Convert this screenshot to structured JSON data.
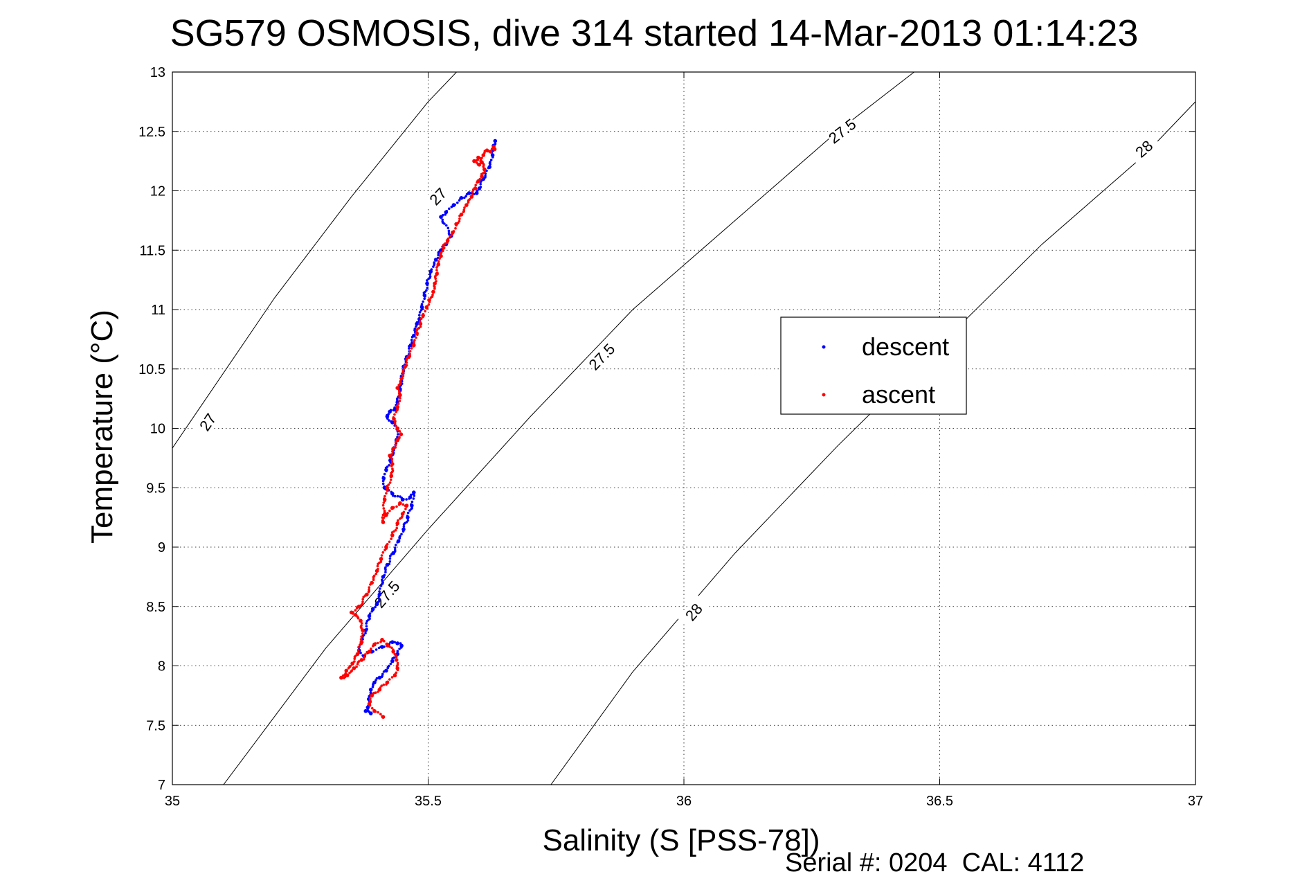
{
  "chart_data": {
    "type": "scatter",
    "title": "SG579 OSMOSIS, dive 314 started 14-Mar-2013 01:14:23",
    "xlabel": "Salinity (S [PSS-78])",
    "ylabel": "Temperature (°C)",
    "xlim": [
      35,
      37
    ],
    "ylim": [
      7,
      13
    ],
    "xticks": [
      "35",
      "35.5",
      "36",
      "36.5",
      "37"
    ],
    "yticks": [
      "7",
      "7.5",
      "8",
      "8.5",
      "9",
      "9.5",
      "10",
      "10.5",
      "11",
      "11.5",
      "12",
      "12.5",
      "13"
    ],
    "grid": true,
    "legend_position": "right-center",
    "footer": "Serial #: 0204  CAL: 4112",
    "contours": [
      {
        "level": "27",
        "points": [
          [
            34.9,
            9.2
          ],
          [
            35.05,
            10.15
          ],
          [
            35.2,
            11.1
          ],
          [
            35.35,
            11.95
          ],
          [
            35.5,
            12.75
          ],
          [
            35.6,
            13.2
          ]
        ],
        "labels": [
          {
            "x": 35.07,
            "y": 10.05
          },
          {
            "x": 35.52,
            "y": 11.95
          }
        ]
      },
      {
        "level": "27.5",
        "points": [
          [
            35.1,
            7.0
          ],
          [
            35.3,
            8.15
          ],
          [
            35.5,
            9.15
          ],
          [
            35.7,
            10.1
          ],
          [
            35.9,
            11.0
          ],
          [
            36.1,
            11.75
          ],
          [
            36.3,
            12.5
          ],
          [
            36.45,
            13.0
          ]
        ],
        "labels": [
          {
            "x": 35.42,
            "y": 8.6
          },
          {
            "x": 35.84,
            "y": 10.6
          },
          {
            "x": 36.31,
            "y": 12.5
          }
        ]
      },
      {
        "level": "28",
        "points": [
          [
            35.74,
            7.0
          ],
          [
            35.9,
            7.95
          ],
          [
            36.1,
            8.95
          ],
          [
            36.3,
            9.85
          ],
          [
            36.5,
            10.7
          ],
          [
            36.7,
            11.55
          ],
          [
            36.9,
            12.3
          ],
          [
            37.0,
            12.75
          ]
        ],
        "labels": [
          {
            "x": 36.02,
            "y": 8.45
          },
          {
            "x": 36.9,
            "y": 12.35
          }
        ]
      }
    ],
    "series": [
      {
        "name": "descent",
        "color": "#0000ff",
        "points": [
          [
            35.631,
            12.42
          ],
          [
            35.628,
            12.38
          ],
          [
            35.626,
            12.3
          ],
          [
            35.62,
            12.2
          ],
          [
            35.608,
            12.1
          ],
          [
            35.6,
            12.02
          ],
          [
            35.595,
            11.98
          ],
          [
            35.58,
            11.98
          ],
          [
            35.565,
            11.94
          ],
          [
            35.55,
            11.88
          ],
          [
            35.535,
            11.82
          ],
          [
            35.525,
            11.78
          ],
          [
            35.545,
            11.62
          ],
          [
            35.535,
            11.55
          ],
          [
            35.525,
            11.5
          ],
          [
            35.515,
            11.42
          ],
          [
            35.505,
            11.32
          ],
          [
            35.498,
            11.22
          ],
          [
            35.493,
            11.12
          ],
          [
            35.488,
            11.02
          ],
          [
            35.483,
            10.92
          ],
          [
            35.478,
            10.88
          ],
          [
            35.472,
            10.78
          ],
          [
            35.466,
            10.7
          ],
          [
            35.458,
            10.6
          ],
          [
            35.452,
            10.52
          ],
          [
            35.448,
            10.42
          ],
          [
            35.445,
            10.33
          ],
          [
            35.44,
            10.22
          ],
          [
            35.435,
            10.16
          ],
          [
            35.425,
            10.14
          ],
          [
            35.42,
            10.1
          ],
          [
            35.43,
            10.05
          ],
          [
            35.44,
            10.0
          ],
          [
            35.438,
            9.9
          ],
          [
            35.432,
            9.82
          ],
          [
            35.426,
            9.73
          ],
          [
            35.418,
            9.65
          ],
          [
            35.413,
            9.58
          ],
          [
            35.415,
            9.5
          ],
          [
            35.43,
            9.45
          ],
          [
            35.45,
            9.4
          ],
          [
            35.465,
            9.42
          ],
          [
            35.472,
            9.46
          ],
          [
            35.468,
            9.35
          ],
          [
            35.46,
            9.25
          ],
          [
            35.452,
            9.15
          ],
          [
            35.442,
            9.05
          ],
          [
            35.432,
            8.95
          ],
          [
            35.42,
            8.85
          ],
          [
            35.412,
            8.75
          ],
          [
            35.405,
            8.6
          ],
          [
            35.4,
            8.52
          ],
          [
            35.392,
            8.48
          ],
          [
            35.385,
            8.42
          ],
          [
            35.378,
            8.3
          ],
          [
            35.37,
            8.2
          ],
          [
            35.365,
            8.13
          ],
          [
            35.375,
            8.08
          ],
          [
            35.39,
            8.12
          ],
          [
            35.41,
            8.16
          ],
          [
            35.43,
            8.2
          ],
          [
            35.44,
            8.19
          ],
          [
            35.448,
            8.17
          ],
          [
            35.44,
            8.1
          ],
          [
            35.43,
            8.04
          ],
          [
            35.418,
            7.96
          ],
          [
            35.405,
            7.9
          ],
          [
            35.395,
            7.86
          ],
          [
            35.388,
            7.8
          ],
          [
            35.384,
            7.72
          ],
          [
            35.382,
            7.65
          ],
          [
            35.378,
            7.62
          ],
          [
            35.388,
            7.6
          ]
        ]
      },
      {
        "name": "ascent",
        "color": "#ff0000",
        "points": [
          [
            35.412,
            7.57
          ],
          [
            35.395,
            7.62
          ],
          [
            35.385,
            7.68
          ],
          [
            35.39,
            7.75
          ],
          [
            35.405,
            7.8
          ],
          [
            35.42,
            7.86
          ],
          [
            35.435,
            7.92
          ],
          [
            35.44,
            7.98
          ],
          [
            35.438,
            8.05
          ],
          [
            35.432,
            8.12
          ],
          [
            35.42,
            8.18
          ],
          [
            35.41,
            8.22
          ],
          [
            35.395,
            8.18
          ],
          [
            35.385,
            8.12
          ],
          [
            35.37,
            8.05
          ],
          [
            35.355,
            7.98
          ],
          [
            35.342,
            7.92
          ],
          [
            35.33,
            7.9
          ],
          [
            35.34,
            7.96
          ],
          [
            35.352,
            8.02
          ],
          [
            35.362,
            8.1
          ],
          [
            35.37,
            8.2
          ],
          [
            35.372,
            8.3
          ],
          [
            35.368,
            8.38
          ],
          [
            35.358,
            8.43
          ],
          [
            35.35,
            8.45
          ],
          [
            35.365,
            8.5
          ],
          [
            35.38,
            8.6
          ],
          [
            35.39,
            8.7
          ],
          [
            35.4,
            8.8
          ],
          [
            35.408,
            8.9
          ],
          [
            35.418,
            9.0
          ],
          [
            35.43,
            9.1
          ],
          [
            35.44,
            9.2
          ],
          [
            35.45,
            9.28
          ],
          [
            35.458,
            9.35
          ],
          [
            35.445,
            9.37
          ],
          [
            35.43,
            9.33
          ],
          [
            35.418,
            9.27
          ],
          [
            35.412,
            9.21
          ],
          [
            35.415,
            9.4
          ],
          [
            35.42,
            9.5
          ],
          [
            35.428,
            9.6
          ],
          [
            35.43,
            9.7
          ],
          [
            35.425,
            9.77
          ],
          [
            35.432,
            9.83
          ],
          [
            35.44,
            9.9
          ],
          [
            35.447,
            9.95
          ],
          [
            35.44,
            10.0
          ],
          [
            35.433,
            10.08
          ],
          [
            35.44,
            10.18
          ],
          [
            35.445,
            10.28
          ],
          [
            35.44,
            10.34
          ],
          [
            35.448,
            10.42
          ],
          [
            35.455,
            10.52
          ],
          [
            35.462,
            10.6
          ],
          [
            35.472,
            10.7
          ],
          [
            35.478,
            10.8
          ],
          [
            35.485,
            10.88
          ],
          [
            35.49,
            10.95
          ],
          [
            35.497,
            11.02
          ],
          [
            35.502,
            11.08
          ],
          [
            35.51,
            11.15
          ],
          [
            35.513,
            11.22
          ],
          [
            35.517,
            11.3
          ],
          [
            35.52,
            11.38
          ],
          [
            35.525,
            11.45
          ],
          [
            35.53,
            11.52
          ],
          [
            35.538,
            11.58
          ],
          [
            35.548,
            11.65
          ],
          [
            35.555,
            11.72
          ],
          [
            35.565,
            11.8
          ],
          [
            35.575,
            11.88
          ],
          [
            35.585,
            11.95
          ],
          [
            35.592,
            12.02
          ],
          [
            35.598,
            12.08
          ],
          [
            35.605,
            12.12
          ],
          [
            35.61,
            12.18
          ],
          [
            35.605,
            12.24
          ],
          [
            35.598,
            12.28
          ],
          [
            35.59,
            12.25
          ],
          [
            35.6,
            12.22
          ],
          [
            35.608,
            12.3
          ],
          [
            35.615,
            12.34
          ],
          [
            35.622,
            12.33
          ],
          [
            35.628,
            12.37
          ],
          [
            35.63,
            12.35
          ]
        ]
      }
    ]
  }
}
